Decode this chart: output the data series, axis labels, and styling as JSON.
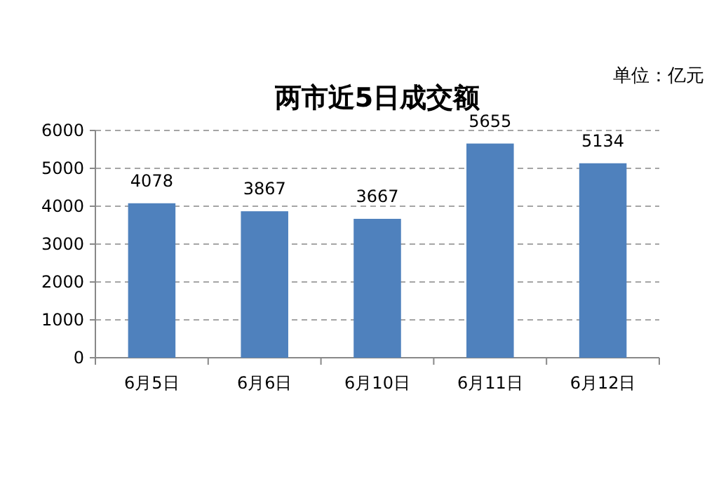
{
  "chart_data": {
    "type": "bar",
    "title": "两市近5日成交额",
    "annotations": [
      "单位：亿元"
    ],
    "categories": [
      "6月5日",
      "6月6日",
      "6月10日",
      "6月11日",
      "6月12日"
    ],
    "values": [
      4078,
      3867,
      3667,
      5655,
      5134
    ],
    "color": "#4f81bd",
    "ylim": [
      0,
      6000
    ],
    "yticks": [
      0,
      1000,
      2000,
      3000,
      4000,
      5000,
      6000
    ],
    "grid": "y",
    "data_labels": true
  }
}
